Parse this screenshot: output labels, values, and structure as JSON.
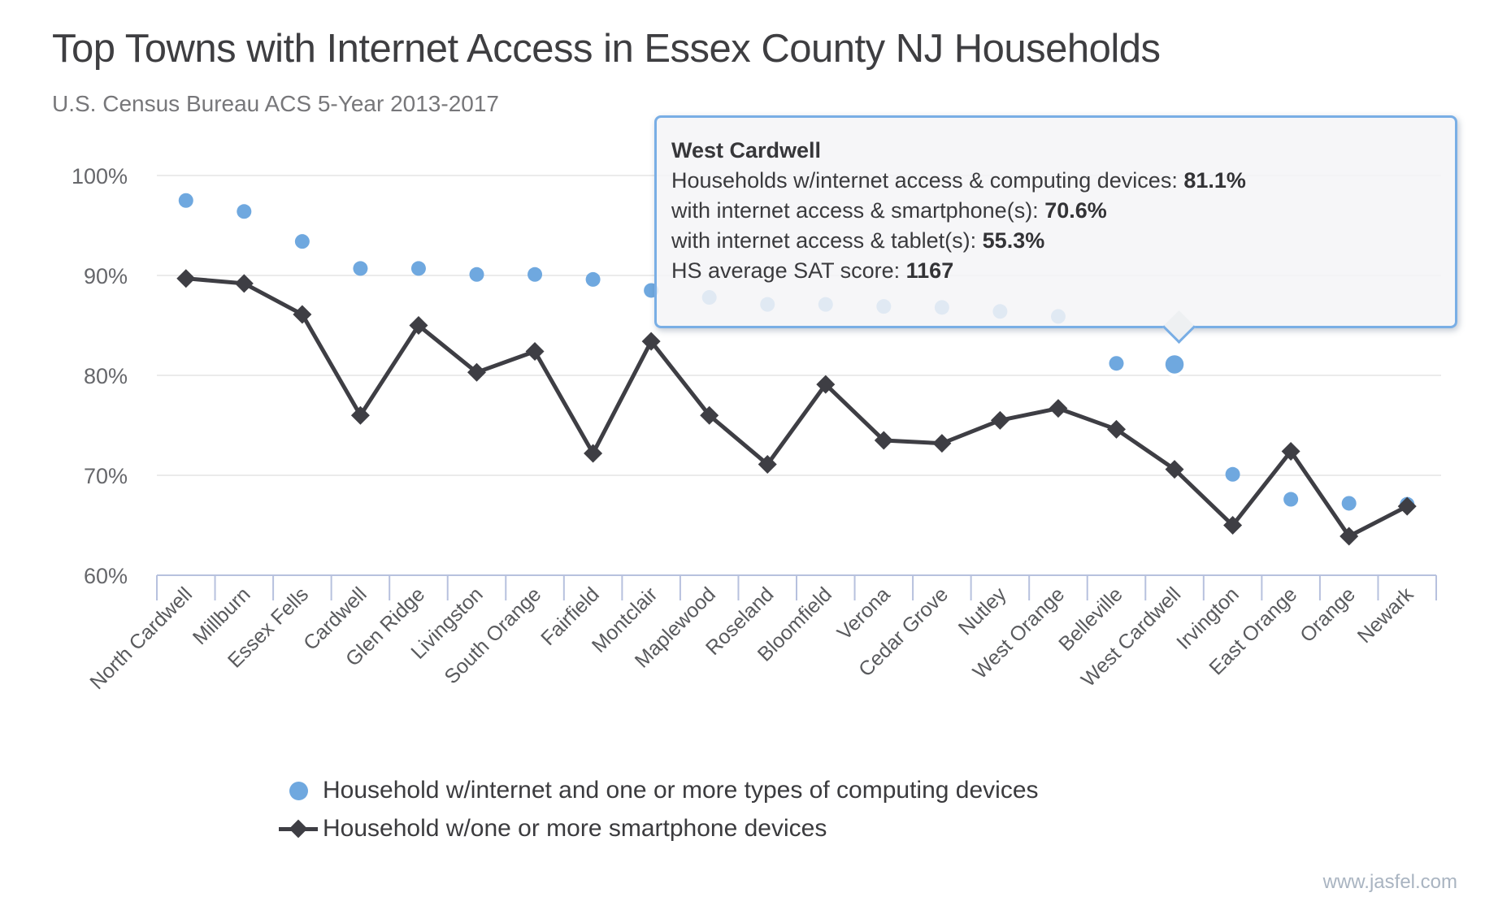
{
  "title": "Top Towns with Internet Access in Essex County NJ Households",
  "subtitle": "U.S. Census Bureau ACS 5-Year 2013-2017",
  "watermark": "www.jasfel.com",
  "colors": {
    "series_computing_devices": "#6FA8DF",
    "series_smartphone": "#3E3E44",
    "gridline": "#EBEBEB",
    "axis": "#B7C1DE",
    "tooltip_border": "#79AEE5",
    "tooltip_background": "#F4F5F7",
    "y_label_text": "#66676B",
    "x_label_text": "#595A5D"
  },
  "tooltip": {
    "town": "West Cardwell",
    "lines": [
      {
        "label": "Households w/internet access & computing devices: ",
        "value": "81.1%"
      },
      {
        "label": "with internet access & smartphone(s): ",
        "value": "70.6%"
      },
      {
        "label": "with internet access & tablet(s): ",
        "value": "55.3%"
      },
      {
        "label": "HS average SAT score: ",
        "value": "1167"
      }
    ]
  },
  "legend": [
    {
      "marker": "circle",
      "label": "Household w/internet and one or more types of computing devices",
      "color": "#6FA8DF"
    },
    {
      "marker": "diamond-line",
      "label": "Household w/one or more smartphone devices",
      "color": "#3E3E44"
    }
  ],
  "chart_data": {
    "type": "line",
    "title": "Top Towns with Internet Access in Essex County NJ Households",
    "subtitle": "U.S. Census Bureau ACS 5-Year 2013-2017",
    "xlabel": "",
    "ylabel": "",
    "ylim": [
      60,
      100
    ],
    "yticks": [
      100,
      90,
      80,
      70,
      60
    ],
    "ytick_format": "percent",
    "grid": true,
    "legend_position": "bottom",
    "highlighted_category": "West Cardwell",
    "highlight_index": 17,
    "categories": [
      "North Cardwell",
      "Millburn",
      "Essex Fells",
      "Cardwell",
      "Glen Ridge",
      "Livingston",
      "South Orange",
      "Fairfield",
      "Montclair",
      "Maplewood",
      "Roseland",
      "Bloomfield",
      "Verona",
      "Cedar Grove",
      "Nutley",
      "West Orange",
      "Belleville",
      "West Cardwell",
      "Irvington",
      "East Orange",
      "Orange",
      "Newark"
    ],
    "series": [
      {
        "name": "Household w/internet and one or more types of computing devices",
        "style": "scatter-dots",
        "color": "#6FA8DF",
        "values": [
          97.5,
          96.4,
          93.4,
          90.7,
          90.7,
          90.1,
          90.1,
          89.6,
          88.5,
          87.8,
          87.1,
          87.1,
          86.9,
          86.8,
          86.4,
          85.9,
          81.2,
          81.1,
          70.1,
          67.6,
          67.2,
          67.1
        ]
      },
      {
        "name": "Household w/one or more smartphone devices",
        "style": "line-diamonds",
        "color": "#3E3E44",
        "values": [
          89.7,
          89.2,
          86.1,
          76.0,
          85.0,
          80.3,
          82.4,
          72.2,
          83.4,
          76.0,
          71.1,
          79.1,
          73.5,
          73.2,
          75.5,
          76.7,
          74.6,
          70.6,
          65.0,
          72.4,
          63.9,
          66.9
        ]
      }
    ]
  }
}
